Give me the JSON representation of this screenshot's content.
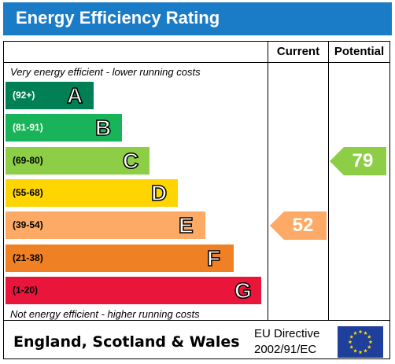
{
  "title": "Energy Efficiency Rating",
  "columns": {
    "current": "Current",
    "potential": "Potential"
  },
  "captions": {
    "top": "Very energy efficient - lower running costs",
    "bottom": "Not energy efficient - higher running costs"
  },
  "chart_data": {
    "type": "bar",
    "categories": [
      "A",
      "B",
      "C",
      "D",
      "E",
      "F",
      "G"
    ],
    "bands": [
      {
        "letter": "A",
        "range": "(92+)",
        "min": 92,
        "max": 100,
        "color": "#008054",
        "text_color": "#ffffff"
      },
      {
        "letter": "B",
        "range": "(81-91)",
        "min": 81,
        "max": 91,
        "color": "#19b459",
        "text_color": "#ffffff"
      },
      {
        "letter": "C",
        "range": "(69-80)",
        "min": 69,
        "max": 80,
        "color": "#8dce46",
        "text_color": "#000000"
      },
      {
        "letter": "D",
        "range": "(55-68)",
        "min": 55,
        "max": 68,
        "color": "#ffd500",
        "text_color": "#000000"
      },
      {
        "letter": "E",
        "range": "(39-54)",
        "min": 39,
        "max": 54,
        "color": "#fcaa65",
        "text_color": "#000000"
      },
      {
        "letter": "F",
        "range": "(21-38)",
        "min": 21,
        "max": 38,
        "color": "#ef8023",
        "text_color": "#000000"
      },
      {
        "letter": "G",
        "range": "(1-20)",
        "min": 1,
        "max": 20,
        "color": "#e9153b",
        "text_color": "#000000"
      }
    ],
    "current": {
      "value": 52,
      "band": "E",
      "color": "#fcaa65"
    },
    "potential": {
      "value": 79,
      "band": "C",
      "color": "#8dce46"
    }
  },
  "footer": {
    "country": "England, Scotland & Wales",
    "directive_line1": "EU Directive",
    "directive_line2": "2002/91/EC",
    "flag_icon": "eu-flag-icon"
  }
}
